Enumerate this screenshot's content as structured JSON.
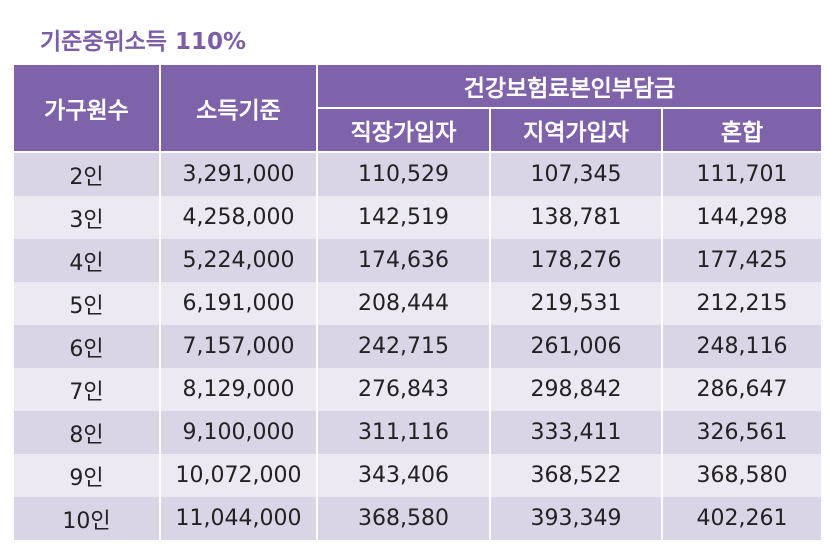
{
  "title": "기준중위소득 110%",
  "header": {
    "household": "가구원수",
    "income": "소득기준",
    "premium_group": "건강보험료본인부담금",
    "employee": "직장가입자",
    "regional": "지역가입자",
    "mixed": "혼합"
  },
  "rows": [
    {
      "household": "2인",
      "income": "3,291,000",
      "employee": "110,529",
      "regional": "107,345",
      "mixed": "111,701"
    },
    {
      "household": "3인",
      "income": "4,258,000",
      "employee": "142,519",
      "regional": "138,781",
      "mixed": "144,298"
    },
    {
      "household": "4인",
      "income": "5,224,000",
      "employee": "174,636",
      "regional": "178,276",
      "mixed": "177,425"
    },
    {
      "household": "5인",
      "income": "6,191,000",
      "employee": "208,444",
      "regional": "219,531",
      "mixed": "212,215"
    },
    {
      "household": "6인",
      "income": "7,157,000",
      "employee": "242,715",
      "regional": "261,006",
      "mixed": "248,116"
    },
    {
      "household": "7인",
      "income": "8,129,000",
      "employee": "276,843",
      "regional": "298,842",
      "mixed": "286,647"
    },
    {
      "household": "8인",
      "income": "9,100,000",
      "employee": "311,116",
      "regional": "333,411",
      "mixed": "326,561"
    },
    {
      "household": "9인",
      "income": "10,072,000",
      "employee": "343,406",
      "regional": "368,522",
      "mixed": "368,580"
    },
    {
      "household": "10인",
      "income": "11,044,000",
      "employee": "368,580",
      "regional": "393,349",
      "mixed": "402,261"
    }
  ],
  "colors": {
    "title": "#7b5ea7",
    "header_bg": "#7e63aa",
    "row_dark": "#d9d4e6",
    "row_light": "#ece9f3"
  }
}
